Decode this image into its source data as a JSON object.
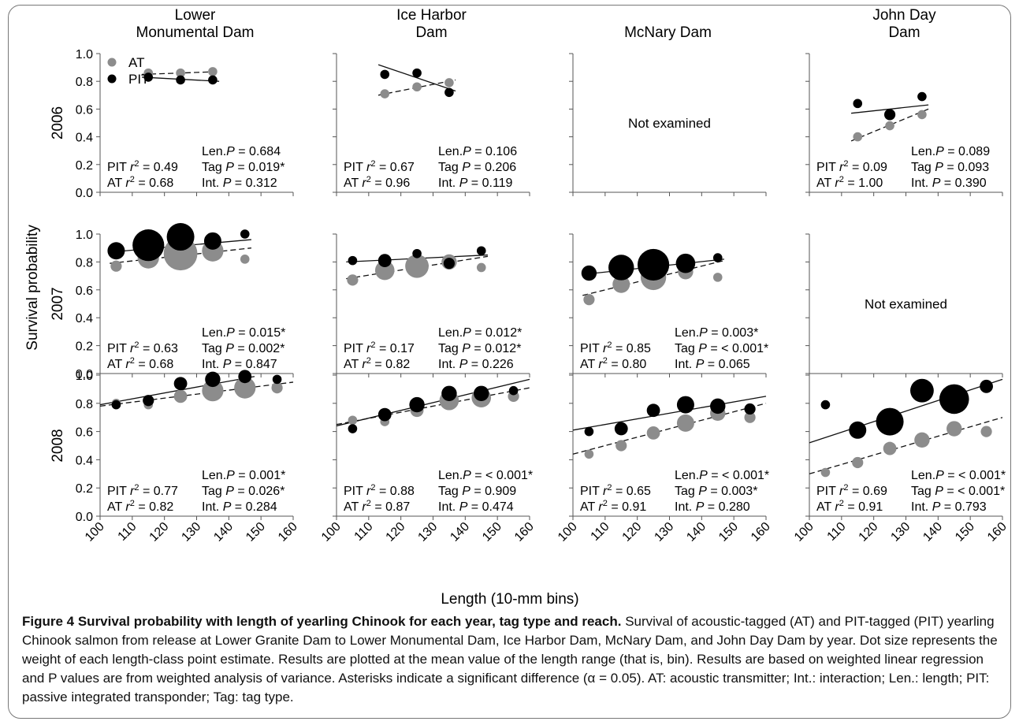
{
  "chart_data": {
    "type": "scatter",
    "ylabel": "Survival probability",
    "xlabel": "Length (10-mm bins)",
    "xlim": [
      100,
      160
    ],
    "ylim": [
      0,
      1.0
    ],
    "xticks": [
      "100",
      "110",
      "120",
      "130",
      "140",
      "150",
      "160"
    ],
    "yticks": [
      "0.0",
      "0.2",
      "0.4",
      "0.6",
      "0.8",
      "1.0"
    ],
    "legend": {
      "AT": "AT",
      "PIT": "PIT",
      "placement": "top-left of first panel"
    },
    "colors": {
      "AT": "#8c8c8c",
      "PIT": "#000000"
    },
    "columns": [
      {
        "title_lines": [
          "Lower",
          "Monumental Dam"
        ]
      },
      {
        "title_lines": [
          "Ice Harbor",
          "Dam"
        ]
      },
      {
        "title_lines": [
          "McNary Dam"
        ]
      },
      {
        "title_lines": [
          "John Day",
          "Dam"
        ]
      }
    ],
    "rows": [
      {
        "year": "2006"
      },
      {
        "year": "2007"
      },
      {
        "year": "2008"
      }
    ],
    "panels": [
      {
        "row": 0,
        "col": 0,
        "examined": true,
        "AT": {
          "points": [
            [
              115,
              0.86,
              2
            ],
            [
              125,
              0.86,
              2
            ],
            [
              135,
              0.87,
              2
            ]
          ],
          "line": [
            [
              113,
              0.85
            ],
            [
              137,
              0.87
            ]
          ]
        },
        "PIT": {
          "points": [
            [
              115,
              0.83,
              2
            ],
            [
              125,
              0.81,
              2
            ],
            [
              135,
              0.81,
              2
            ]
          ],
          "line": [
            [
              113,
              0.83
            ],
            [
              137,
              0.8
            ]
          ]
        },
        "stats": {
          "pit_r2": "0.49",
          "at_r2": "0.68",
          "len_p": "0.684",
          "tag_p": "0.019*",
          "int_p": "0.312"
        }
      },
      {
        "row": 0,
        "col": 1,
        "examined": true,
        "AT": {
          "points": [
            [
              115,
              0.71,
              2
            ],
            [
              125,
              0.76,
              2
            ],
            [
              135,
              0.79,
              2
            ]
          ],
          "line": [
            [
              113,
              0.7
            ],
            [
              137,
              0.81
            ]
          ]
        },
        "PIT": {
          "points": [
            [
              115,
              0.85,
              2
            ],
            [
              125,
              0.86,
              2
            ],
            [
              135,
              0.72,
              2
            ]
          ],
          "line": [
            [
              113,
              0.92
            ],
            [
              137,
              0.73
            ]
          ]
        },
        "stats": {
          "pit_r2": "0.67",
          "at_r2": "0.96",
          "len_p": "0.106",
          "tag_p": "0.206",
          "int_p": "0.119"
        }
      },
      {
        "row": 0,
        "col": 2,
        "examined": false,
        "message": "Not examined"
      },
      {
        "row": 0,
        "col": 3,
        "examined": true,
        "AT": {
          "points": [
            [
              115,
              0.4,
              2
            ],
            [
              125,
              0.48,
              2
            ],
            [
              135,
              0.56,
              2
            ]
          ],
          "line": [
            [
              113,
              0.37
            ],
            [
              137,
              0.6
            ]
          ]
        },
        "PIT": {
          "points": [
            [
              115,
              0.64,
              2
            ],
            [
              125,
              0.56,
              2.5
            ],
            [
              135,
              0.69,
              2
            ]
          ],
          "line": [
            [
              113,
              0.57
            ],
            [
              137,
              0.63
            ]
          ]
        },
        "stats": {
          "pit_r2": "0.09",
          "at_r2": "1.00",
          "len_p": "0.089",
          "tag_p": "0.093",
          "int_p": "0.390"
        }
      },
      {
        "row": 1,
        "col": 0,
        "examined": true,
        "AT": {
          "points": [
            [
              105,
              0.77,
              2.5
            ],
            [
              115,
              0.83,
              5
            ],
            [
              125,
              0.86,
              8
            ],
            [
              135,
              0.88,
              5
            ],
            [
              145,
              0.82,
              2
            ]
          ],
          "line": [
            [
              103,
              0.79
            ],
            [
              147,
              0.9
            ]
          ]
        },
        "PIT": {
          "points": [
            [
              105,
              0.88,
              4
            ],
            [
              115,
              0.92,
              7.5
            ],
            [
              125,
              0.98,
              6.5
            ],
            [
              135,
              0.95,
              4
            ],
            [
              145,
              1.0,
              2
            ]
          ],
          "line": [
            [
              103,
              0.87
            ],
            [
              147,
              0.96
            ]
          ]
        },
        "stats": {
          "pit_r2": "0.63",
          "at_r2": "0.68",
          "len_p": "0.015*",
          "tag_p": "0.002*",
          "int_p": "0.847"
        }
      },
      {
        "row": 1,
        "col": 1,
        "examined": true,
        "AT": {
          "points": [
            [
              105,
              0.67,
              2.5
            ],
            [
              115,
              0.74,
              4.5
            ],
            [
              125,
              0.77,
              5.5
            ],
            [
              135,
              0.8,
              3.5
            ],
            [
              145,
              0.76,
              2
            ]
          ],
          "line": [
            [
              103,
              0.68
            ],
            [
              147,
              0.84
            ]
          ]
        },
        "PIT": {
          "points": [
            [
              105,
              0.81,
              2
            ],
            [
              115,
              0.81,
              3
            ],
            [
              125,
              0.86,
              2
            ],
            [
              135,
              0.79,
              2.5
            ],
            [
              145,
              0.88,
              2
            ]
          ],
          "line": [
            [
              103,
              0.8
            ],
            [
              147,
              0.85
            ]
          ]
        },
        "stats": {
          "pit_r2": "0.17",
          "at_r2": "0.82",
          "len_p": "0.012*",
          "tag_p": "0.012*",
          "int_p": "0.226"
        }
      },
      {
        "row": 1,
        "col": 2,
        "examined": true,
        "AT": {
          "points": [
            [
              105,
              0.53,
              2.5
            ],
            [
              115,
              0.64,
              4
            ],
            [
              125,
              0.69,
              6
            ],
            [
              135,
              0.73,
              3.5
            ],
            [
              145,
              0.69,
              2
            ]
          ],
          "line": [
            [
              103,
              0.56
            ],
            [
              147,
              0.81
            ]
          ]
        },
        "PIT": {
          "points": [
            [
              105,
              0.72,
              3.5
            ],
            [
              115,
              0.76,
              6
            ],
            [
              125,
              0.78,
              7.5
            ],
            [
              135,
              0.79,
              4.5
            ],
            [
              145,
              0.83,
              2
            ]
          ],
          "line": [
            [
              103,
              0.71
            ],
            [
              147,
              0.82
            ]
          ]
        },
        "stats": {
          "pit_r2": "0.85",
          "at_r2": "0.80",
          "len_p": "0.003*",
          "tag_p": "< 0.001*",
          "int_p": "0.065"
        }
      },
      {
        "row": 1,
        "col": 3,
        "examined": false,
        "message": "Not examined"
      },
      {
        "row": 2,
        "col": 0,
        "examined": true,
        "AT": {
          "points": [
            [
              105,
              0.8,
              2
            ],
            [
              115,
              0.79,
              2
            ],
            [
              125,
              0.85,
              3
            ],
            [
              135,
              0.89,
              5
            ],
            [
              145,
              0.91,
              5
            ],
            [
              155,
              0.91,
              2.5
            ]
          ],
          "line": [
            [
              100,
              0.78
            ],
            [
              160,
              0.95
            ]
          ]
        },
        "PIT": {
          "points": [
            [
              105,
              0.79,
              2
            ],
            [
              115,
              0.82,
              2.5
            ],
            [
              125,
              0.94,
              3
            ],
            [
              135,
              0.97,
              3.5
            ],
            [
              145,
              0.99,
              3
            ],
            [
              155,
              0.97,
              2
            ]
          ],
          "line": [
            [
              100,
              0.79
            ],
            [
              148,
              0.99
            ]
          ]
        },
        "stats": {
          "pit_r2": "0.77",
          "at_r2": "0.82",
          "len_p": "0.001*",
          "tag_p": "0.026*",
          "int_p": "0.284"
        }
      },
      {
        "row": 2,
        "col": 1,
        "examined": true,
        "AT": {
          "points": [
            [
              105,
              0.68,
              2
            ],
            [
              115,
              0.67,
              2
            ],
            [
              125,
              0.75,
              3
            ],
            [
              135,
              0.82,
              4.5
            ],
            [
              145,
              0.84,
              4.5
            ],
            [
              155,
              0.85,
              2.5
            ]
          ],
          "line": [
            [
              100,
              0.65
            ],
            [
              160,
              0.91
            ]
          ]
        },
        "PIT": {
          "points": [
            [
              105,
              0.62,
              2
            ],
            [
              115,
              0.72,
              3
            ],
            [
              125,
              0.79,
              3.5
            ],
            [
              135,
              0.87,
              3.5
            ],
            [
              145,
              0.87,
              3.5
            ],
            [
              155,
              0.89,
              2
            ]
          ],
          "line": [
            [
              100,
              0.64
            ],
            [
              160,
              0.97
            ]
          ]
        },
        "stats": {
          "pit_r2": "0.88",
          "at_r2": "0.87",
          "len_p": "< 0.001*",
          "tag_p": "0.909",
          "int_p": "0.474"
        }
      },
      {
        "row": 2,
        "col": 2,
        "examined": true,
        "AT": {
          "points": [
            [
              105,
              0.44,
              2
            ],
            [
              115,
              0.5,
              2.5
            ],
            [
              125,
              0.59,
              3
            ],
            [
              135,
              0.66,
              4
            ],
            [
              145,
              0.73,
              3.5
            ],
            [
              155,
              0.7,
              2.5
            ]
          ],
          "line": [
            [
              100,
              0.44
            ],
            [
              160,
              0.8
            ]
          ]
        },
        "PIT": {
          "points": [
            [
              105,
              0.6,
              2
            ],
            [
              115,
              0.62,
              3
            ],
            [
              125,
              0.75,
              3
            ],
            [
              135,
              0.79,
              4
            ],
            [
              145,
              0.78,
              3.5
            ],
            [
              155,
              0.76,
              2.5
            ]
          ],
          "line": [
            [
              100,
              0.61
            ],
            [
              160,
              0.85
            ]
          ]
        },
        "stats": {
          "pit_r2": "0.65",
          "at_r2": "0.91",
          "len_p": "< 0.001*",
          "tag_p": "0.003*",
          "int_p": "0.280"
        }
      },
      {
        "row": 2,
        "col": 3,
        "examined": true,
        "AT": {
          "points": [
            [
              105,
              0.31,
              2
            ],
            [
              115,
              0.38,
              2.5
            ],
            [
              125,
              0.48,
              3
            ],
            [
              135,
              0.54,
              3.5
            ],
            [
              145,
              0.62,
              3.5
            ],
            [
              155,
              0.6,
              2.5
            ]
          ],
          "line": [
            [
              100,
              0.3
            ],
            [
              160,
              0.7
            ]
          ]
        },
        "PIT": {
          "points": [
            [
              105,
              0.79,
              2
            ],
            [
              115,
              0.61,
              4
            ],
            [
              125,
              0.67,
              6.5
            ],
            [
              135,
              0.89,
              5.5
            ],
            [
              145,
              0.83,
              7
            ],
            [
              155,
              0.92,
              3
            ]
          ],
          "line": [
            [
              100,
              0.52
            ],
            [
              160,
              0.97
            ]
          ]
        },
        "stats": {
          "pit_r2": "0.69",
          "at_r2": "0.91",
          "len_p": "< 0.001*",
          "tag_p": "< 0.001*",
          "int_p": "0.793"
        }
      }
    ]
  },
  "caption": {
    "title": "Figure 4 Survival probability with length of yearling Chinook for each year, tag type and reach.",
    "body": "Survival of acoustic-tagged (AT) and PIT-tagged (PIT) yearling Chinook salmon from release at Lower Granite Dam to Lower Monumental Dam, Ice Harbor Dam, McNary Dam, and John Day Dam by year. Dot size represents the weight of each length-class point estimate. Results are plotted at the mean value of the length range (that is, bin). Results are based on weighted linear regression and P values are from weighted analysis of variance. Asterisks indicate a significant difference (α = 0.05). AT: acoustic transmitter; Int.: interaction; Len.: length; PIT: passive integrated transponder; Tag: tag type."
  }
}
